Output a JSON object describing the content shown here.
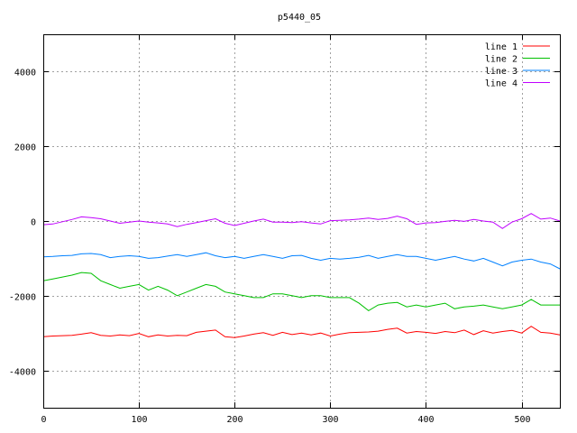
{
  "chart_data": {
    "type": "line",
    "title": "p5440_05",
    "xlabel": "",
    "ylabel": "",
    "xlim": [
      0,
      540
    ],
    "ylim": [
      -5000,
      5000
    ],
    "xticks": [
      0,
      100,
      200,
      300,
      400,
      500
    ],
    "yticks": [
      -4000,
      -2000,
      0,
      2000,
      4000
    ],
    "grid": true,
    "legend_position": "top-right",
    "series": [
      {
        "name": "line 1",
        "color": "#ff0000",
        "x": [
          0,
          10,
          20,
          30,
          40,
          50,
          60,
          70,
          80,
          90,
          100,
          110,
          120,
          130,
          140,
          150,
          160,
          170,
          180,
          190,
          200,
          210,
          220,
          230,
          240,
          250,
          260,
          270,
          280,
          290,
          300,
          310,
          320,
          330,
          340,
          350,
          360,
          370,
          380,
          390,
          400,
          410,
          420,
          430,
          440,
          450,
          460,
          470,
          480,
          490,
          500,
          510,
          520,
          530,
          540
        ],
        "y": [
          -3100,
          -3080,
          -3070,
          -3060,
          -3030,
          -2990,
          -3060,
          -3080,
          -3050,
          -3070,
          -3010,
          -3100,
          -3050,
          -3080,
          -3060,
          -3070,
          -2980,
          -2950,
          -2920,
          -3100,
          -3120,
          -3080,
          -3030,
          -2990,
          -3060,
          -2980,
          -3040,
          -3000,
          -3050,
          -3000,
          -3080,
          -3030,
          -2990,
          -2980,
          -2970,
          -2950,
          -2900,
          -2870,
          -3000,
          -2960,
          -2980,
          -3010,
          -2960,
          -2990,
          -2920,
          -3040,
          -2940,
          -3000,
          -2960,
          -2930,
          -3000,
          -2820,
          -2980,
          -3000,
          -3050
        ]
      },
      {
        "name": "line 2",
        "color": "#00c000",
        "x": [
          0,
          10,
          20,
          30,
          40,
          50,
          60,
          70,
          80,
          90,
          100,
          110,
          120,
          130,
          140,
          150,
          160,
          170,
          180,
          190,
          200,
          210,
          220,
          230,
          240,
          250,
          260,
          270,
          280,
          290,
          300,
          310,
          320,
          330,
          340,
          350,
          360,
          370,
          380,
          390,
          400,
          410,
          420,
          430,
          440,
          450,
          460,
          470,
          480,
          490,
          500,
          510,
          520,
          530,
          540
        ],
        "y": [
          -1600,
          -1550,
          -1500,
          -1450,
          -1380,
          -1400,
          -1600,
          -1700,
          -1800,
          -1750,
          -1700,
          -1850,
          -1750,
          -1850,
          -2000,
          -1900,
          -1800,
          -1700,
          -1750,
          -1900,
          -1950,
          -2000,
          -2050,
          -2050,
          -1950,
          -1950,
          -2000,
          -2050,
          -2000,
          -2000,
          -2050,
          -2050,
          -2050,
          -2200,
          -2400,
          -2250,
          -2200,
          -2180,
          -2300,
          -2250,
          -2300,
          -2250,
          -2200,
          -2350,
          -2300,
          -2280,
          -2250,
          -2300,
          -2350,
          -2300,
          -2250,
          -2100,
          -2250,
          -2250,
          -2250
        ]
      },
      {
        "name": "line 3",
        "color": "#0080ff",
        "x": [
          0,
          10,
          20,
          30,
          40,
          50,
          60,
          70,
          80,
          90,
          100,
          110,
          120,
          130,
          140,
          150,
          160,
          170,
          180,
          190,
          200,
          210,
          220,
          230,
          240,
          250,
          260,
          270,
          280,
          290,
          300,
          310,
          320,
          330,
          340,
          350,
          360,
          370,
          380,
          390,
          400,
          410,
          420,
          430,
          440,
          450,
          460,
          470,
          480,
          490,
          500,
          510,
          520,
          530,
          540
        ],
        "y": [
          -960,
          -950,
          -930,
          -920,
          -880,
          -870,
          -900,
          -980,
          -950,
          -930,
          -950,
          -1000,
          -980,
          -940,
          -900,
          -950,
          -900,
          -850,
          -930,
          -980,
          -950,
          -1000,
          -950,
          -900,
          -950,
          -1000,
          -930,
          -920,
          -1000,
          -1050,
          -1000,
          -1020,
          -1000,
          -970,
          -920,
          -1000,
          -950,
          -900,
          -950,
          -950,
          -1000,
          -1050,
          -1000,
          -950,
          -1020,
          -1070,
          -1000,
          -1100,
          -1200,
          -1100,
          -1050,
          -1020,
          -1100,
          -1150,
          -1280
        ]
      },
      {
        "name": "line 4",
        "color": "#c000ff",
        "x": [
          0,
          10,
          20,
          30,
          40,
          50,
          60,
          70,
          80,
          90,
          100,
          110,
          120,
          130,
          140,
          150,
          160,
          170,
          180,
          190,
          200,
          210,
          220,
          230,
          240,
          250,
          260,
          270,
          280,
          290,
          300,
          310,
          320,
          330,
          340,
          350,
          360,
          370,
          380,
          390,
          400,
          410,
          420,
          430,
          440,
          450,
          460,
          470,
          480,
          490,
          500,
          510,
          520,
          530,
          540
        ],
        "y": [
          -100,
          -80,
          -20,
          40,
          110,
          90,
          60,
          0,
          -60,
          -30,
          0,
          -30,
          -50,
          -80,
          -150,
          -90,
          -40,
          10,
          60,
          -60,
          -120,
          -60,
          0,
          50,
          -30,
          -30,
          -40,
          -20,
          -50,
          -80,
          10,
          20,
          30,
          50,
          80,
          40,
          70,
          130,
          60,
          -90,
          -50,
          -40,
          -10,
          20,
          -10,
          40,
          0,
          -30,
          -200,
          -30,
          60,
          200,
          50,
          80,
          0
        ]
      }
    ]
  }
}
